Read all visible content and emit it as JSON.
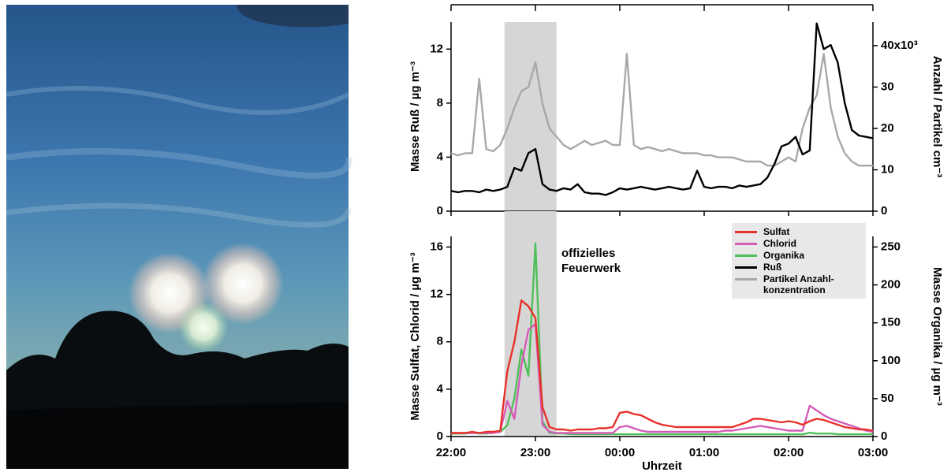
{
  "chart_data": [
    {
      "type": "line",
      "x": [
        "22:00",
        "22:05",
        "22:10",
        "22:15",
        "22:20",
        "22:25",
        "22:30",
        "22:35",
        "22:40",
        "22:45",
        "22:50",
        "22:55",
        "23:00",
        "23:05",
        "23:10",
        "23:15",
        "23:20",
        "23:25",
        "23:30",
        "23:35",
        "23:40",
        "23:45",
        "23:50",
        "23:55",
        "00:00",
        "00:05",
        "00:10",
        "00:15",
        "00:20",
        "00:25",
        "00:30",
        "00:35",
        "00:40",
        "00:45",
        "00:50",
        "00:55",
        "01:00",
        "01:05",
        "01:10",
        "01:15",
        "01:20",
        "01:25",
        "01:30",
        "01:35",
        "01:40",
        "01:45",
        "01:50",
        "01:55",
        "02:00",
        "02:05",
        "02:10",
        "02:15",
        "02:20",
        "02:25",
        "02:30",
        "02:35",
        "02:40",
        "02:45",
        "02:50",
        "02:55",
        "03:00"
      ],
      "xlim": [
        "22:00",
        "03:00"
      ],
      "xticks": [
        "22:00",
        "23:00",
        "00:00",
        "01:00",
        "02:00",
        "03:00"
      ],
      "ylabel": "Masse Ruß / µg m⁻³",
      "ylim": [
        0,
        14
      ],
      "yticks": [
        0,
        4,
        8,
        12
      ],
      "y2label": "Anzahl / Partikel cm⁻³",
      "y2lim": [
        0,
        45.7
      ],
      "y2ticks": [
        0,
        10,
        20,
        30,
        {
          "value": 40,
          "label": "40x10³"
        }
      ],
      "highlight": [
        "22:38",
        "23:15"
      ],
      "series": [
        {
          "name": "Ruß",
          "color": "#000000",
          "values": [
            1.5,
            1.4,
            1.5,
            1.5,
            1.4,
            1.6,
            1.5,
            1.6,
            1.8,
            3.2,
            3.0,
            4.3,
            4.6,
            2.0,
            1.6,
            1.5,
            1.7,
            1.6,
            2.0,
            1.4,
            1.3,
            1.3,
            1.2,
            1.4,
            1.7,
            1.6,
            1.7,
            1.8,
            1.7,
            1.6,
            1.7,
            1.8,
            1.7,
            1.6,
            1.7,
            3.0,
            1.8,
            1.7,
            1.8,
            1.8,
            1.7,
            1.9,
            1.8,
            1.9,
            2.0,
            2.5,
            3.5,
            4.8,
            5.0,
            5.5,
            4.2,
            4.5,
            13.9,
            12.0,
            12.3,
            11.0,
            8.0,
            6.0,
            5.6,
            5.5,
            5.4
          ]
        },
        {
          "name": "Partikel Anzahl-konzentration",
          "color": "#a8a8a8",
          "axis": "y2",
          "values": [
            14,
            13.5,
            14,
            14,
            32,
            15,
            14.5,
            16,
            20,
            25,
            29,
            30,
            36,
            26,
            20,
            18,
            16,
            15,
            16,
            17,
            16,
            16.5,
            17,
            16,
            16,
            38,
            16,
            15,
            15.5,
            15,
            14.5,
            15,
            14.5,
            14,
            14,
            14,
            13.5,
            13.5,
            13,
            13,
            13,
            12.5,
            12,
            12,
            12,
            11,
            11,
            12,
            13,
            12,
            20,
            25,
            28,
            38,
            25,
            18,
            14,
            12,
            11,
            11,
            11
          ]
        }
      ]
    },
    {
      "type": "line",
      "x": [
        "22:00",
        "22:05",
        "22:10",
        "22:15",
        "22:20",
        "22:25",
        "22:30",
        "22:35",
        "22:40",
        "22:45",
        "22:50",
        "22:55",
        "23:00",
        "23:05",
        "23:10",
        "23:15",
        "23:20",
        "23:25",
        "23:30",
        "23:35",
        "23:40",
        "23:45",
        "23:50",
        "23:55",
        "00:00",
        "00:05",
        "00:10",
        "00:15",
        "00:20",
        "00:25",
        "00:30",
        "00:35",
        "00:40",
        "00:45",
        "00:50",
        "00:55",
        "01:00",
        "01:05",
        "01:10",
        "01:15",
        "01:20",
        "01:25",
        "01:30",
        "01:35",
        "01:40",
        "01:45",
        "01:50",
        "01:55",
        "02:00",
        "02:05",
        "02:10",
        "02:15",
        "02:20",
        "02:25",
        "02:30",
        "02:35",
        "02:40",
        "02:45",
        "02:50",
        "02:55",
        "03:00"
      ],
      "xlim": [
        "22:00",
        "03:00"
      ],
      "xticks": [
        "22:00",
        "23:00",
        "00:00",
        "01:00",
        "02:00",
        "03:00"
      ],
      "xlabel": "Uhrzeit",
      "ylabel": "Masse Sulfat, Chlorid / µg m⁻³",
      "ylim": [
        0,
        16.9
      ],
      "yticks": [
        0,
        4,
        8,
        12,
        16
      ],
      "y2label": "Masse Organika / µg m⁻³",
      "y2lim": [
        0,
        264
      ],
      "y2ticks": [
        0,
        50,
        100,
        150,
        200,
        250
      ],
      "highlight": [
        "22:38",
        "23:15"
      ],
      "annotation": [
        "offizielles",
        "Feuerwerk"
      ],
      "legend": "upper right",
      "series": [
        {
          "name": "Sulfat",
          "color": "#e8312a",
          "values": [
            0.3,
            0.3,
            0.3,
            0.4,
            0.3,
            0.4,
            0.4,
            0.5,
            5.5,
            8,
            11.5,
            11,
            10,
            2.5,
            0.8,
            0.6,
            0.6,
            0.5,
            0.6,
            0.6,
            0.6,
            0.7,
            0.7,
            0.8,
            2.0,
            2.1,
            1.9,
            1.8,
            1.5,
            1.2,
            1.0,
            0.9,
            0.8,
            0.8,
            0.8,
            0.8,
            0.8,
            0.8,
            0.8,
            0.8,
            0.8,
            1.0,
            1.2,
            1.5,
            1.5,
            1.4,
            1.3,
            1.2,
            1.3,
            1.2,
            1.0,
            1.3,
            1.5,
            1.4,
            1.2,
            1.0,
            0.8,
            0.7,
            0.6,
            0.6,
            0.5
          ]
        },
        {
          "name": "Chlorid",
          "color": "#d45bb8",
          "values": [
            0.3,
            0.3,
            0.3,
            0.3,
            0.3,
            0.3,
            0.3,
            0.4,
            3.0,
            1.5,
            6,
            9,
            9.5,
            1,
            0.4,
            0.3,
            0.3,
            0.3,
            0.3,
            0.3,
            0.3,
            0.3,
            0.3,
            0.3,
            0.8,
            0.9,
            0.7,
            0.5,
            0.4,
            0.4,
            0.4,
            0.4,
            0.4,
            0.4,
            0.4,
            0.4,
            0.4,
            0.4,
            0.4,
            0.5,
            0.5,
            0.6,
            0.7,
            0.8,
            0.9,
            0.8,
            0.7,
            0.6,
            0.5,
            0.5,
            0.5,
            2.6,
            2.2,
            1.8,
            1.5,
            1.3,
            1.1,
            0.9,
            0.7,
            0.5,
            0.4
          ]
        },
        {
          "name": "Organika",
          "color": "#4fc05a",
          "axis": "y2",
          "values": [
            4,
            4,
            4,
            5,
            4,
            4,
            5,
            6,
            15,
            50,
            115,
            80,
            255,
            20,
            5,
            4,
            4,
            3,
            3,
            3,
            3,
            3,
            3,
            3,
            3,
            3,
            3,
            3,
            3,
            3,
            3,
            3,
            3,
            3,
            3,
            3,
            3,
            3,
            3,
            3,
            3,
            3,
            3,
            3,
            3,
            3,
            3,
            3,
            3,
            3,
            3,
            5,
            4,
            4,
            4,
            3,
            3,
            3,
            3,
            3,
            3
          ]
        }
      ]
    }
  ]
}
